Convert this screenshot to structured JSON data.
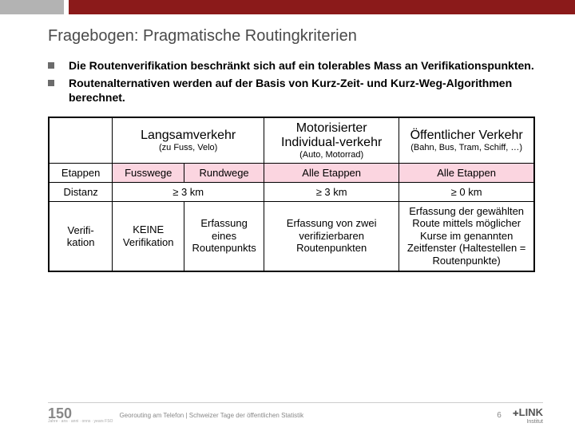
{
  "title": "Fragebogen: Pragmatische Routingkriterien",
  "bullets": [
    "Die Routenverifikation beschränkt sich auf ein tolerables Mass an Verifikationspunkten.",
    "Routenalternativen werden auf der Basis von Kurz-Zeit- und Kurz-Weg-Algorithmen berechnet."
  ],
  "table": {
    "headers": {
      "col2": {
        "main": "Langsamverkehr",
        "sub": "(zu Fuss, Velo)"
      },
      "col3": {
        "main": "Motorisierter Individual-verkehr",
        "sub": "(Auto, Motorrad)"
      },
      "col4": {
        "main": "Öffentlicher Verkehr",
        "sub": "(Bahn, Bus, Tram, Schiff, …)"
      }
    },
    "rows": {
      "etappen": {
        "label": "Etappen",
        "a": "Fusswege",
        "b": "Rundwege",
        "c": "Alle Etappen",
        "d": "Alle Etappen"
      },
      "distanz": {
        "label": "Distanz",
        "b": "≥ 3 km",
        "c": "≥ 3 km",
        "d": "≥ 0 km"
      },
      "verif": {
        "label": "Verifi-kation",
        "a": "KEINE Verifikation",
        "b": "Erfassung eines Routenpunkts",
        "c": "Erfassung von zwei verifizierbaren Routenpunkten",
        "d": "Erfassung der gewählten Route mittels möglicher Kurse im genannten Zeitfenster (Haltestellen = Routenpunkte)"
      }
    }
  },
  "footer": {
    "logo": "150",
    "logosub": "Jahre ∙ ans ∙ anni ∙ onns ∙ years FSO",
    "text": "Georouting am Telefon | Schweizer Tage der öffentlichen Statistik",
    "page": "6",
    "brand": "LINK",
    "brandsub": "Institut"
  }
}
